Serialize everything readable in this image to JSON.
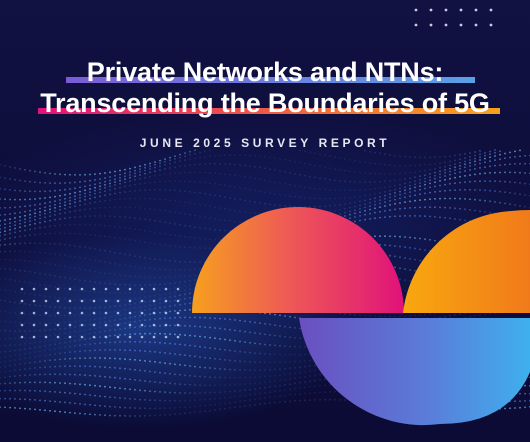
{
  "cover": {
    "title_line1": "Private Networks and NTNs:",
    "title_line2": "Transcending the Boundaries of 5G",
    "subtitle": "JUNE 2025 SURVEY REPORT"
  },
  "colors": {
    "background": "#0e0e3c",
    "accent_magenta": "#e0127a",
    "accent_orange": "#f7a21c",
    "accent_purple": "#6c4fbf",
    "accent_blue": "#4aa3e8"
  }
}
